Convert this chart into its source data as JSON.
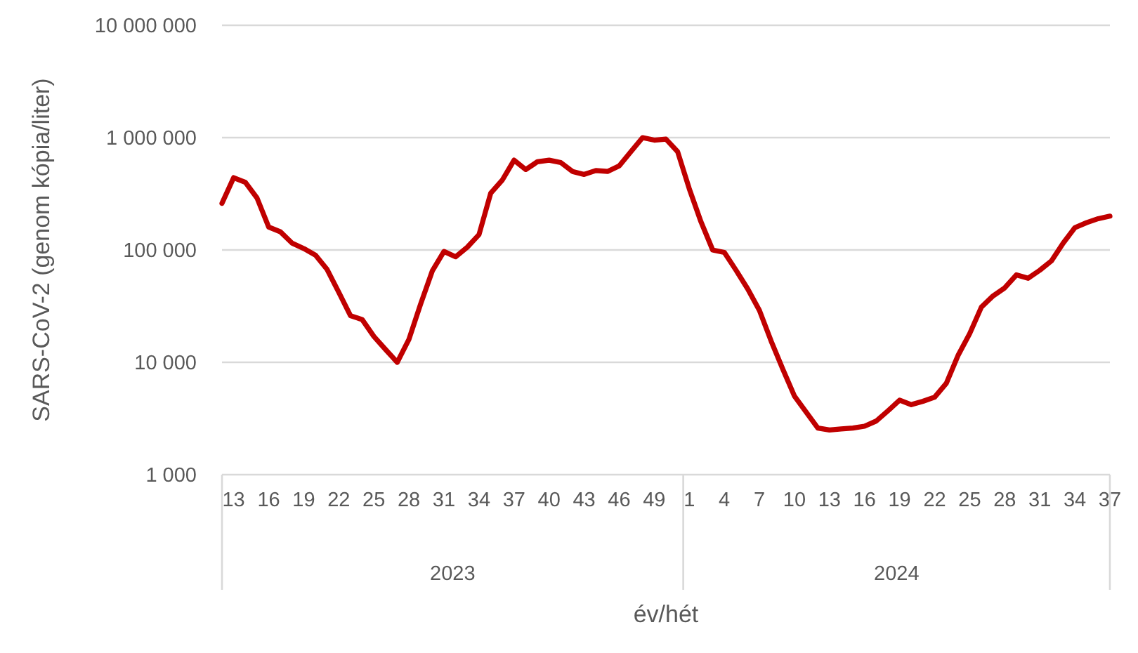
{
  "chart_data": {
    "type": "line",
    "ylabel": "SARS-CoV-2 (genom kópia/liter)",
    "xlabel": "év/hét",
    "categories": [
      null,
      "13",
      null,
      null,
      "16",
      null,
      null,
      "19",
      null,
      null,
      "22",
      null,
      null,
      "25",
      null,
      null,
      "28",
      null,
      null,
      "31",
      null,
      null,
      "34",
      null,
      null,
      "37",
      null,
      null,
      "40",
      null,
      null,
      "43",
      null,
      null,
      "46",
      null,
      null,
      "49",
      null,
      null,
      "1",
      null,
      null,
      "4",
      null,
      null,
      "7",
      null,
      null,
      "10",
      null,
      null,
      "13",
      null,
      null,
      "16",
      null,
      null,
      "19",
      null,
      null,
      "22",
      null,
      null,
      "25",
      null,
      null,
      "28",
      null,
      null,
      "31",
      null,
      null,
      "34",
      null,
      null,
      "37"
    ],
    "series": [
      {
        "color": "#c00000",
        "values": [
          260000,
          440000,
          400000,
          290000,
          160000,
          145000,
          115000,
          103000,
          90000,
          67000,
          42000,
          26000,
          24000,
          17000,
          13000,
          10000,
          16000,
          33000,
          65000,
          97000,
          87000,
          106000,
          137000,
          320000,
          420000,
          630000,
          520000,
          610000,
          630000,
          600000,
          500000,
          470000,
          510000,
          500000,
          560000,
          750000,
          1000000,
          950000,
          970000,
          750000,
          350000,
          178000,
          100000,
          95000,
          66000,
          45000,
          29000,
          15500,
          8700,
          5000,
          3600,
          2600,
          2500,
          2550,
          2600,
          2700,
          3000,
          3700,
          4600,
          4200,
          4500,
          4900,
          6500,
          11500,
          18000,
          31000,
          39000,
          46000,
          60000,
          56000,
          66000,
          80000,
          115000,
          158000,
          175000,
          190000,
          200000
        ]
      }
    ],
    "ylim": [
      1000,
      10000000
    ],
    "yticks": [
      {
        "value": 1000,
        "label": "1 000"
      },
      {
        "value": 10000,
        "label": "10 000"
      },
      {
        "value": 100000,
        "label": "100 000"
      },
      {
        "value": 1000000,
        "label": "1 000 000"
      },
      {
        "value": 10000000,
        "label": "10 000 000"
      }
    ],
    "log": true,
    "grid": "y",
    "marker": "none",
    "line_style": "solid",
    "annotations": [
      "2023",
      "2024"
    ]
  }
}
